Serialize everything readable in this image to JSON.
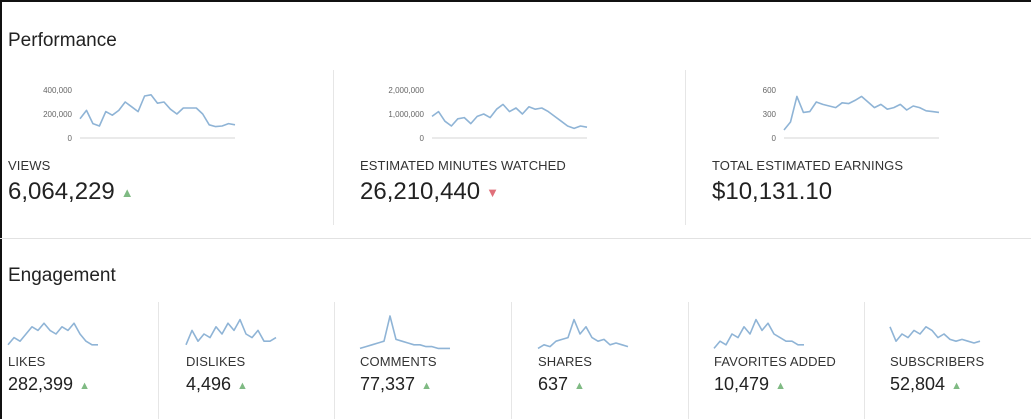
{
  "performance": {
    "title": "Performance",
    "cards": [
      {
        "label": "VIEWS",
        "value": "6,064,229",
        "trend": "up",
        "trend_glyph": "▲",
        "yticks": [
          "400,000",
          "200,000",
          "0"
        ],
        "ymax": 400000,
        "series": [
          160000,
          230000,
          120000,
          100000,
          220000,
          190000,
          230000,
          300000,
          260000,
          220000,
          350000,
          360000,
          290000,
          300000,
          240000,
          200000,
          250000,
          250000,
          250000,
          200000,
          110000,
          95000,
          100000,
          120000,
          110000
        ]
      },
      {
        "label": "ESTIMATED MINUTES WATCHED",
        "value": "26,210,440",
        "trend": "down",
        "trend_glyph": "▼",
        "yticks": [
          "2,000,000",
          "1,000,000",
          "0"
        ],
        "ymax": 2000000,
        "series": [
          900000,
          1100000,
          700000,
          500000,
          800000,
          850000,
          600000,
          900000,
          1000000,
          850000,
          1200000,
          1400000,
          1100000,
          1250000,
          1000000,
          1300000,
          1200000,
          1250000,
          1100000,
          900000,
          700000,
          500000,
          400000,
          500000,
          450000
        ]
      },
      {
        "label": "TOTAL ESTIMATED EARNINGS",
        "value": "$10,131.10",
        "trend": "none",
        "trend_glyph": "",
        "yticks": [
          "600",
          "300",
          "0"
        ],
        "ymax": 600,
        "series": [
          100,
          200,
          520,
          320,
          330,
          450,
          420,
          400,
          380,
          440,
          430,
          470,
          520,
          450,
          380,
          420,
          360,
          380,
          420,
          350,
          400,
          380,
          340,
          330,
          320
        ]
      }
    ]
  },
  "engagement": {
    "title": "Engagement",
    "cards": [
      {
        "label": "LIKES",
        "value": "282,399",
        "trend": "up",
        "trend_glyph": "▲",
        "series": [
          0.2,
          0.4,
          0.3,
          0.5,
          0.7,
          0.6,
          0.8,
          0.6,
          0.5,
          0.7,
          0.6,
          0.8,
          0.5,
          0.3,
          0.2,
          0.2
        ]
      },
      {
        "label": "DISLIKES",
        "value": "4,496",
        "trend": "up",
        "trend_glyph": "▲",
        "series": [
          0.2,
          0.6,
          0.3,
          0.5,
          0.4,
          0.7,
          0.5,
          0.8,
          0.6,
          0.9,
          0.5,
          0.4,
          0.6,
          0.3,
          0.3,
          0.4
        ]
      },
      {
        "label": "COMMENTS",
        "value": "77,337",
        "trend": "up",
        "trend_glyph": "▲",
        "series": [
          0.1,
          0.15,
          0.2,
          0.25,
          0.3,
          1.0,
          0.35,
          0.3,
          0.25,
          0.2,
          0.2,
          0.15,
          0.15,
          0.1,
          0.1,
          0.1
        ]
      },
      {
        "label": "SHARES",
        "value": "637",
        "trend": "up",
        "trend_glyph": "▲",
        "series": [
          0.1,
          0.2,
          0.15,
          0.3,
          0.35,
          0.4,
          0.9,
          0.5,
          0.7,
          0.4,
          0.3,
          0.35,
          0.2,
          0.25,
          0.2,
          0.15
        ]
      },
      {
        "label": "FAVORITES ADDED",
        "value": "10,479",
        "trend": "up",
        "trend_glyph": "▲",
        "series": [
          0.1,
          0.3,
          0.2,
          0.5,
          0.4,
          0.7,
          0.5,
          0.9,
          0.6,
          0.8,
          0.5,
          0.4,
          0.3,
          0.3,
          0.2,
          0.2
        ]
      },
      {
        "label": "SUBSCRIBERS",
        "value": "52,804",
        "trend": "up",
        "trend_glyph": "▲",
        "series": [
          0.7,
          0.3,
          0.5,
          0.4,
          0.6,
          0.5,
          0.7,
          0.6,
          0.4,
          0.5,
          0.35,
          0.3,
          0.35,
          0.3,
          0.25,
          0.3
        ]
      }
    ]
  }
}
